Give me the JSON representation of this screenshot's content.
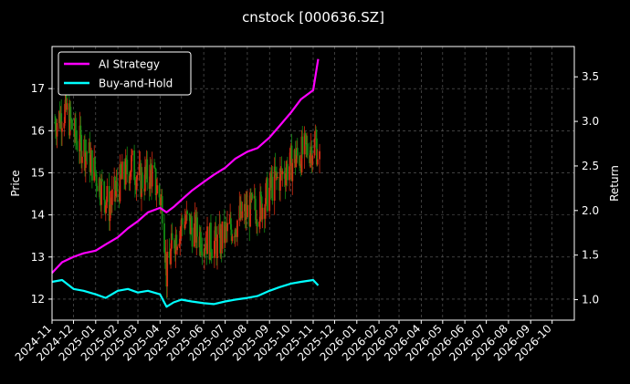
{
  "chart_data": {
    "type": "line",
    "title": "cnstock [000636.SZ]",
    "xlabel": "",
    "ylabel": "Price",
    "y2label": "Return",
    "background": "#000000",
    "grid": true,
    "legend_position": "top-left",
    "colors": {
      "ai_strategy": "#ff00ff",
      "buy_and_hold": "#00ffff",
      "candle_up": "#d62b12",
      "candle_down": "#138a13",
      "text": "#ffffff",
      "grid": "#666666"
    },
    "xlim": [
      "2024-11-01",
      "2026-11-01"
    ],
    "ylim": [
      11.5,
      18.0
    ],
    "y2lim": [
      0.77,
      3.84
    ],
    "xticks": [
      "2024-11",
      "2024-12",
      "2025-01",
      "2025-02",
      "2025-03",
      "2025-04",
      "2025-05",
      "2025-06",
      "2025-07",
      "2025-08",
      "2025-09",
      "2025-10",
      "2025-11",
      "2025-12",
      "2026-01",
      "2026-02",
      "2026-03",
      "2026-04",
      "2026-05",
      "2026-06",
      "2026-07",
      "2026-08",
      "2026-09",
      "2026-10"
    ],
    "yticks": [
      12,
      13,
      14,
      15,
      16,
      17
    ],
    "y2ticks": [
      "1.0",
      "1.5",
      "2.0",
      "2.5",
      "3.0",
      "3.5"
    ],
    "price_series": {
      "name": "Price",
      "x": [
        "2024-11-05",
        "2024-11-20",
        "2024-12-05",
        "2024-12-20",
        "2025-01-05",
        "2025-01-20",
        "2025-02-05",
        "2025-02-20",
        "2025-03-05",
        "2025-03-20",
        "2025-04-05",
        "2025-04-10",
        "2025-04-20",
        "2025-05-05",
        "2025-05-20",
        "2025-06-05",
        "2025-06-20",
        "2025-07-05",
        "2025-07-20",
        "2025-08-05",
        "2025-08-20",
        "2025-09-05",
        "2025-09-20",
        "2025-10-05",
        "2025-10-20",
        "2025-11-05",
        "2025-11-10"
      ],
      "close": [
        16.2,
        16.5,
        15.8,
        15.5,
        14.8,
        14.2,
        14.8,
        15.2,
        14.8,
        15.0,
        14.2,
        12.6,
        13.4,
        13.9,
        13.6,
        13.4,
        13.3,
        13.6,
        13.9,
        14.1,
        14.2,
        14.7,
        15.0,
        15.3,
        15.5,
        15.7,
        15.3
      ]
    },
    "series": [
      {
        "name": "AI Strategy",
        "x": [
          "2024-11-01",
          "2024-11-15",
          "2024-12-01",
          "2024-12-15",
          "2025-01-01",
          "2025-01-15",
          "2025-02-01",
          "2025-02-15",
          "2025-03-01",
          "2025-03-15",
          "2025-04-01",
          "2025-04-10",
          "2025-04-20",
          "2025-05-01",
          "2025-05-15",
          "2025-06-01",
          "2025-06-15",
          "2025-07-01",
          "2025-07-15",
          "2025-08-01",
          "2025-08-15",
          "2025-09-01",
          "2025-09-15",
          "2025-10-01",
          "2025-10-15",
          "2025-11-01",
          "2025-11-08"
        ],
        "values": [
          1.3,
          1.42,
          1.48,
          1.52,
          1.55,
          1.62,
          1.7,
          1.8,
          1.88,
          1.98,
          2.03,
          1.98,
          2.04,
          2.12,
          2.22,
          2.32,
          2.4,
          2.48,
          2.58,
          2.66,
          2.7,
          2.82,
          2.95,
          3.1,
          3.25,
          3.35,
          3.7
        ]
      },
      {
        "name": "Buy-and-Hold",
        "x": [
          "2024-11-01",
          "2024-11-15",
          "2024-12-01",
          "2024-12-15",
          "2025-01-01",
          "2025-01-15",
          "2025-02-01",
          "2025-02-15",
          "2025-03-01",
          "2025-03-15",
          "2025-04-01",
          "2025-04-10",
          "2025-04-20",
          "2025-05-01",
          "2025-05-15",
          "2025-06-01",
          "2025-06-15",
          "2025-07-01",
          "2025-07-15",
          "2025-08-01",
          "2025-08-15",
          "2025-09-01",
          "2025-09-15",
          "2025-10-01",
          "2025-10-15",
          "2025-11-01",
          "2025-11-08"
        ],
        "values": [
          1.2,
          1.22,
          1.12,
          1.1,
          1.06,
          1.02,
          1.1,
          1.12,
          1.08,
          1.1,
          1.06,
          0.92,
          0.97,
          1.0,
          0.98,
          0.96,
          0.95,
          0.98,
          1.0,
          1.02,
          1.04,
          1.1,
          1.14,
          1.18,
          1.2,
          1.22,
          1.16
        ]
      }
    ]
  }
}
